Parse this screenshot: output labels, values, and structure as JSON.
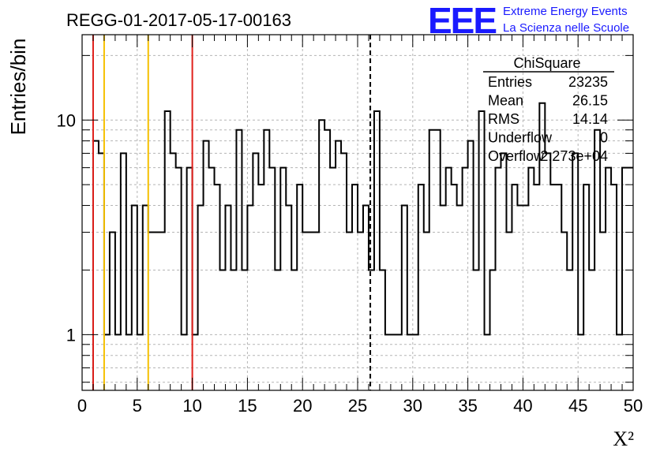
{
  "page": {
    "run_title": "REGG-01-2017-05-17-00163",
    "logo_text": "EEE",
    "logo_line1": "Extreme Energy Events",
    "logo_line2": "La Scienza nelle Scuole"
  },
  "stats_box": {
    "title": "ChiSquare",
    "rows": [
      {
        "label": "Entries",
        "value": "23235"
      },
      {
        "label": "Mean",
        "value": "26.15"
      },
      {
        "label": "RMS",
        "value": "14.14"
      },
      {
        "label": "Underflow",
        "value": "0"
      },
      {
        "label": "Overflow",
        "value": "2.273e+04"
      }
    ]
  },
  "colors": {
    "histogram": "#000000",
    "red_line": "#e0201b",
    "orange_line": "#f5c000",
    "grid": "#b5b5b5",
    "logo_blue": "#1a1aff"
  },
  "chart_data": {
    "type": "histogram",
    "xlabel": "X²",
    "ylabel": "Entries/bin",
    "xlim": [
      0,
      50
    ],
    "ylim": [
      0.55,
      25
    ],
    "yscale": "log",
    "grid": true,
    "legend": "top-right",
    "x_ticks": [
      0,
      5,
      10,
      15,
      20,
      25,
      30,
      35,
      40,
      45,
      50
    ],
    "y_ticks": [
      1,
      10
    ],
    "bin_width": 0.5,
    "bin_start": 0,
    "values": [
      0,
      0,
      8,
      7,
      1,
      3,
      1,
      7,
      1,
      4,
      1,
      4,
      3,
      3,
      3,
      11,
      7,
      6,
      1,
      6,
      1,
      4,
      8,
      6,
      5,
      2,
      4,
      2,
      9,
      2,
      4,
      7,
      5,
      9,
      6,
      2,
      6,
      4,
      2,
      5,
      3,
      3,
      3,
      10,
      9,
      6,
      8,
      7,
      3,
      5,
      3,
      4,
      2,
      11,
      2,
      1,
      1,
      1,
      4,
      1,
      1,
      5,
      3,
      9,
      9,
      4,
      6,
      5,
      4,
      6,
      8,
      2,
      11,
      1,
      2,
      6,
      7,
      3,
      5,
      4,
      4,
      6,
      5,
      12,
      7,
      5,
      5,
      3,
      2,
      7,
      1,
      5,
      2,
      9,
      3,
      6,
      5,
      1,
      6,
      6
    ],
    "vertical_lines": [
      {
        "x": 1.0,
        "color": "red",
        "style": "solid"
      },
      {
        "x": 2.0,
        "color": "orange",
        "style": "solid"
      },
      {
        "x": 6.0,
        "color": "orange",
        "style": "solid"
      },
      {
        "x": 10.0,
        "color": "red",
        "style": "solid"
      },
      {
        "x": 26.15,
        "color": "black",
        "style": "dashed"
      }
    ]
  }
}
